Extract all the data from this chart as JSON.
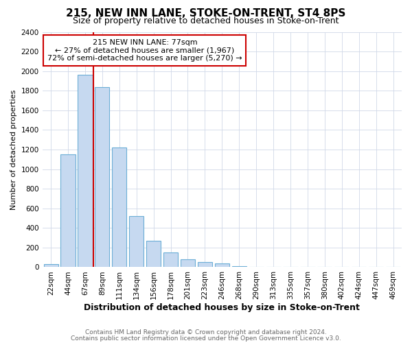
{
  "title": "215, NEW INN LANE, STOKE-ON-TRENT, ST4 8PS",
  "subtitle": "Size of property relative to detached houses in Stoke-on-Trent",
  "xlabel": "Distribution of detached houses by size in Stoke-on-Trent",
  "ylabel": "Number of detached properties",
  "footnote1": "Contains HM Land Registry data © Crown copyright and database right 2024.",
  "footnote2": "Contains public sector information licensed under the Open Government Licence v3.0.",
  "annotation_line1": "215 NEW INN LANE: 77sqm",
  "annotation_line2": "← 27% of detached houses are smaller (1,967)",
  "annotation_line3": "72% of semi-detached houses are larger (5,270) →",
  "bar_categories": [
    "22sqm",
    "44sqm",
    "67sqm",
    "89sqm",
    "111sqm",
    "134sqm",
    "156sqm",
    "178sqm",
    "201sqm",
    "223sqm",
    "246sqm",
    "268sqm",
    "290sqm",
    "313sqm",
    "335sqm",
    "357sqm",
    "380sqm",
    "402sqm",
    "424sqm",
    "447sqm",
    "469sqm"
  ],
  "bar_values": [
    30,
    1150,
    1960,
    1840,
    1220,
    520,
    270,
    150,
    80,
    50,
    35,
    10,
    5,
    3,
    2,
    1,
    1,
    1,
    1,
    1,
    1
  ],
  "bar_facecolor": "#c6d9f0",
  "bar_edgecolor": "#6baed6",
  "vline_color": "#cc0000",
  "vline_x_index": 2.5,
  "ylim": [
    0,
    2400
  ],
  "yticks": [
    0,
    200,
    400,
    600,
    800,
    1000,
    1200,
    1400,
    1600,
    1800,
    2000,
    2200,
    2400
  ],
  "annotation_box_edgecolor": "#cc0000",
  "background_color": "#ffffff",
  "title_fontsize": 11,
  "subtitle_fontsize": 9,
  "xlabel_fontsize": 9,
  "ylabel_fontsize": 8,
  "footnote_fontsize": 6.5,
  "footnote_color": "#666666",
  "tick_fontsize": 7.5
}
